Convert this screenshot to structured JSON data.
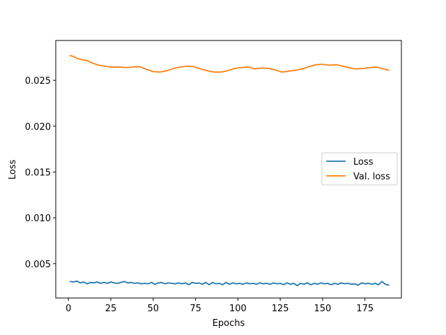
{
  "chart_data": {
    "type": "line",
    "title": "",
    "xlabel": "Epochs",
    "ylabel": "Loss",
    "xlim": [
      -7.5,
      196.5
    ],
    "ylim": [
      0.00125,
      0.02935
    ],
    "x_ticks": [
      0,
      25,
      50,
      75,
      100,
      125,
      150,
      175
    ],
    "y_ticks": [
      0.005,
      0.01,
      0.015,
      0.02,
      0.025
    ],
    "x_tick_labels": [
      "0",
      "25",
      "50",
      "75",
      "100",
      "125",
      "150",
      "175"
    ],
    "y_tick_labels": [
      "0.005",
      "0.010",
      "0.015",
      "0.020",
      "0.025"
    ],
    "grid": false,
    "legend_position": "center-right",
    "series": [
      {
        "name": "Loss",
        "color": "#1f77b4",
        "points": [
          [
            1,
            0.00305
          ],
          [
            3,
            0.003
          ],
          [
            5,
            0.0031
          ],
          [
            7,
            0.0029
          ],
          [
            9,
            0.003
          ],
          [
            11,
            0.0028
          ],
          [
            13,
            0.00295
          ],
          [
            15,
            0.0029
          ],
          [
            17,
            0.003
          ],
          [
            19,
            0.00285
          ],
          [
            21,
            0.00295
          ],
          [
            23,
            0.00285
          ],
          [
            25,
            0.003
          ],
          [
            27,
            0.0029
          ],
          [
            29,
            0.00285
          ],
          [
            31,
            0.00295
          ],
          [
            33,
            0.00305
          ],
          [
            35,
            0.0029
          ],
          [
            37,
            0.00295
          ],
          [
            39,
            0.00285
          ],
          [
            41,
            0.0029
          ],
          [
            43,
            0.0028
          ],
          [
            45,
            0.00285
          ],
          [
            47,
            0.0028
          ],
          [
            49,
            0.00295
          ],
          [
            51,
            0.00275
          ],
          [
            53,
            0.0029
          ],
          [
            55,
            0.00295
          ],
          [
            57,
            0.0028
          ],
          [
            59,
            0.0029
          ],
          [
            61,
            0.00285
          ],
          [
            63,
            0.0028
          ],
          [
            65,
            0.0029
          ],
          [
            67,
            0.0028
          ],
          [
            69,
            0.0029
          ],
          [
            71,
            0.0027
          ],
          [
            73,
            0.00295
          ],
          [
            75,
            0.00285
          ],
          [
            77,
            0.0029
          ],
          [
            79,
            0.00275
          ],
          [
            81,
            0.00295
          ],
          [
            83,
            0.0027
          ],
          [
            85,
            0.00295
          ],
          [
            87,
            0.0028
          ],
          [
            89,
            0.00285
          ],
          [
            91,
            0.0027
          ],
          [
            93,
            0.00295
          ],
          [
            95,
            0.00275
          ],
          [
            97,
            0.0029
          ],
          [
            99,
            0.0028
          ],
          [
            101,
            0.00285
          ],
          [
            103,
            0.00275
          ],
          [
            105,
            0.0029
          ],
          [
            107,
            0.0028
          ],
          [
            109,
            0.00285
          ],
          [
            111,
            0.00275
          ],
          [
            113,
            0.0029
          ],
          [
            115,
            0.0028
          ],
          [
            117,
            0.00285
          ],
          [
            119,
            0.00275
          ],
          [
            121,
            0.0029
          ],
          [
            123,
            0.0028
          ],
          [
            125,
            0.00285
          ],
          [
            127,
            0.0027
          ],
          [
            129,
            0.0029
          ],
          [
            131,
            0.00275
          ],
          [
            133,
            0.00285
          ],
          [
            135,
            0.0026
          ],
          [
            137,
            0.00285
          ],
          [
            139,
            0.00275
          ],
          [
            141,
            0.0029
          ],
          [
            143,
            0.0027
          ],
          [
            145,
            0.00285
          ],
          [
            147,
            0.00275
          ],
          [
            149,
            0.0029
          ],
          [
            151,
            0.0028
          ],
          [
            153,
            0.00285
          ],
          [
            155,
            0.0027
          ],
          [
            157,
            0.00285
          ],
          [
            159,
            0.00275
          ],
          [
            161,
            0.0029
          ],
          [
            163,
            0.0028
          ],
          [
            165,
            0.00285
          ],
          [
            167,
            0.00275
          ],
          [
            169,
            0.0028
          ],
          [
            171,
            0.00265
          ],
          [
            173,
            0.0029
          ],
          [
            175,
            0.0028
          ],
          [
            177,
            0.00285
          ],
          [
            179,
            0.00275
          ],
          [
            181,
            0.00285
          ],
          [
            183,
            0.0027
          ],
          [
            185,
            0.00305
          ],
          [
            187,
            0.00275
          ],
          [
            189,
            0.00265
          ]
        ]
      },
      {
        "name": "Val. loss",
        "color": "#ff7f0e",
        "points": [
          [
            1,
            0.0277
          ],
          [
            3,
            0.0276
          ],
          [
            5,
            0.0274
          ],
          [
            8,
            0.02725
          ],
          [
            11,
            0.02715
          ],
          [
            14,
            0.0269
          ],
          [
            17,
            0.0267
          ],
          [
            21,
            0.02655
          ],
          [
            25,
            0.02645
          ],
          [
            30,
            0.02645
          ],
          [
            34,
            0.0264
          ],
          [
            38,
            0.02645
          ],
          [
            42,
            0.0265
          ],
          [
            46,
            0.0262
          ],
          [
            50,
            0.02595
          ],
          [
            54,
            0.0259
          ],
          [
            58,
            0.02605
          ],
          [
            62,
            0.0263
          ],
          [
            66,
            0.02645
          ],
          [
            70,
            0.02655
          ],
          [
            74,
            0.0265
          ],
          [
            78,
            0.02625
          ],
          [
            82,
            0.02605
          ],
          [
            86,
            0.0259
          ],
          [
            90,
            0.0259
          ],
          [
            94,
            0.02605
          ],
          [
            98,
            0.0263
          ],
          [
            102,
            0.0264
          ],
          [
            106,
            0.02645
          ],
          [
            110,
            0.02625
          ],
          [
            114,
            0.02635
          ],
          [
            118,
            0.0263
          ],
          [
            122,
            0.02615
          ],
          [
            126,
            0.0259
          ],
          [
            130,
            0.026
          ],
          [
            134,
            0.0261
          ],
          [
            138,
            0.02625
          ],
          [
            142,
            0.0265
          ],
          [
            146,
            0.0267
          ],
          [
            150,
            0.02675
          ],
          [
            154,
            0.02665
          ],
          [
            158,
            0.0267
          ],
          [
            162,
            0.02655
          ],
          [
            166,
            0.02635
          ],
          [
            170,
            0.02625
          ],
          [
            174,
            0.0263
          ],
          [
            178,
            0.0264
          ],
          [
            182,
            0.02645
          ],
          [
            186,
            0.02625
          ],
          [
            189,
            0.0261
          ]
        ]
      }
    ]
  }
}
